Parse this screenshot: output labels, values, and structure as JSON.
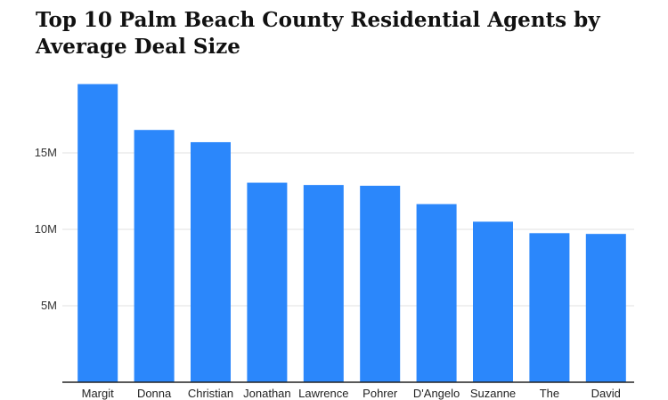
{
  "chart_data": {
    "type": "bar",
    "title": "Top 10 Palm Beach County Residential Agents by Average Deal Size",
    "xlabel": "",
    "ylabel": "",
    "categories": [
      "Margit",
      "Donna",
      "Christian",
      "Jonathan",
      "Lawrence",
      "Pohrer",
      "D'Angelo",
      "Suzanne",
      "The",
      "David"
    ],
    "values": [
      19.5,
      16.5,
      15.7,
      13.05,
      12.9,
      12.85,
      11.65,
      10.5,
      9.75,
      9.7
    ],
    "ylim": [
      0,
      20
    ],
    "yticks": [
      5,
      10,
      15
    ],
    "ytick_labels": [
      "5M",
      "10M",
      "15M"
    ],
    "grid": true,
    "legend": "none",
    "colors": {
      "bar": "#2b87fb",
      "grid": "#e2e2e2",
      "axis": "#222222"
    }
  }
}
